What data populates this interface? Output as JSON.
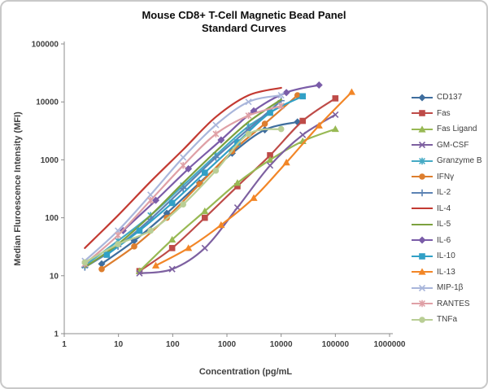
{
  "title": {
    "line1": "Mouse CD8+ T-Cell Magnetic Bead Panel",
    "line2": "Standard Curves"
  },
  "chart_data": {
    "type": "line",
    "title": "Mouse CD8+ T-Cell Magnetic Bead Panel Standard Curves",
    "xlabel": "Concentration (pg/mL",
    "ylabel": "Median Fluroescence Intensity (MFI)",
    "x_scale": "log",
    "y_scale": "log",
    "xlim": [
      1,
      1000000
    ],
    "ylim": [
      1,
      100000
    ],
    "x_ticks": [
      1,
      10,
      100,
      1000,
      10000,
      100000,
      1000000
    ],
    "y_ticks": [
      1,
      10,
      100,
      1000,
      10000,
      100000
    ],
    "grid": false,
    "legend_position": "right",
    "axis_color": "#8c8c8c",
    "tick_label_color": "#3f3f3f",
    "series": [
      {
        "name": "CD137",
        "color": "#3f6e9e",
        "marker": "diamond",
        "x": [
          4.9,
          19.5,
          78,
          313,
          1250,
          5000,
          20000
        ],
        "y": [
          16,
          40,
          120,
          400,
          1300,
          3300,
          4500
        ]
      },
      {
        "name": "Fas",
        "color": "#be4b48",
        "marker": "square",
        "x": [
          24.4,
          97.7,
          391,
          1563,
          6250,
          25000,
          100000
        ],
        "y": [
          12,
          30,
          100,
          350,
          1200,
          4700,
          11500
        ]
      },
      {
        "name": "Fas Ligand",
        "color": "#98b954",
        "marker": "triangle",
        "x": [
          24.4,
          97.7,
          391,
          1563,
          6250,
          25000,
          100000
        ],
        "y": [
          12,
          42,
          130,
          400,
          1000,
          2100,
          3400
        ]
      },
      {
        "name": "GM-CSF",
        "color": "#7d60a0",
        "marker": "x",
        "x": [
          24.4,
          97.7,
          391,
          1563,
          6250,
          25000,
          100000
        ],
        "y": [
          11,
          13,
          30,
          150,
          800,
          2700,
          6000
        ]
      },
      {
        "name": "Granzyme B",
        "color": "#46aac5",
        "marker": "asterisk",
        "x": [
          2.4,
          9.8,
          39.1,
          156,
          625,
          2500,
          10000
        ],
        "y": [
          15,
          40,
          110,
          360,
          1200,
          3800,
          8500
        ]
      },
      {
        "name": "IFNγ",
        "color": "#dd7e2e",
        "marker": "circle",
        "x": [
          4.9,
          19.5,
          78,
          313,
          1250,
          5000,
          20000
        ],
        "y": [
          13,
          32,
          100,
          380,
          1400,
          4200,
          13000
        ]
      },
      {
        "name": "IL-2",
        "color": "#5c83b4",
        "marker": "plus",
        "x": [
          2.4,
          9.8,
          39.1,
          156,
          625,
          2500,
          10000
        ],
        "y": [
          14,
          32,
          95,
          320,
          1100,
          3400,
          10500
        ]
      },
      {
        "name": "IL-4",
        "color": "#c33a32",
        "marker": "none",
        "x": [
          2.4,
          9.8,
          39.1,
          156,
          625,
          2500,
          10000
        ],
        "y": [
          30,
          110,
          420,
          1500,
          5500,
          13000,
          17500
        ]
      },
      {
        "name": "IL-5",
        "color": "#7ca13f",
        "marker": "none",
        "x": [
          2.4,
          9.8,
          39.1,
          156,
          625,
          2500,
          10000
        ],
        "y": [
          14,
          35,
          110,
          400,
          1400,
          4500,
          11000
        ]
      },
      {
        "name": "IL-6",
        "color": "#7a5ca8",
        "marker": "diamond",
        "x": [
          12.2,
          48.8,
          195,
          781,
          3125,
          12500,
          50000
        ],
        "y": [
          60,
          200,
          700,
          2200,
          7000,
          14500,
          19500
        ]
      },
      {
        "name": "IL-10",
        "color": "#31a0c6",
        "marker": "square",
        "x": [
          6.1,
          24.4,
          97.7,
          391,
          1563,
          6250,
          25000
        ],
        "y": [
          23,
          60,
          180,
          600,
          2000,
          6500,
          12500
        ]
      },
      {
        "name": "IL-13",
        "color": "#f28627",
        "marker": "triangle",
        "x": [
          48.8,
          195,
          781,
          3125,
          12500,
          50000,
          200000
        ],
        "y": [
          15,
          30,
          75,
          220,
          900,
          3900,
          14800
        ]
      },
      {
        "name": "MIP-1β",
        "color": "#a9b6db",
        "marker": "x",
        "x": [
          2.4,
          9.8,
          39.1,
          156,
          625,
          2500,
          10000
        ],
        "y": [
          18,
          60,
          250,
          1100,
          4000,
          10000,
          13000
        ]
      },
      {
        "name": "RANTES",
        "color": "#dfa0a6",
        "marker": "asterisk",
        "x": [
          2.4,
          9.8,
          39.1,
          156,
          625,
          2500,
          10000
        ],
        "y": [
          16,
          50,
          200,
          800,
          2800,
          5800,
          8500
        ]
      },
      {
        "name": "TNFa",
        "color": "#b9ce95",
        "marker": "circle",
        "x": [
          2.4,
          9.8,
          39.1,
          156,
          625,
          2500,
          10000
        ],
        "y": [
          17,
          35,
          60,
          170,
          650,
          2800,
          3400
        ]
      }
    ]
  }
}
